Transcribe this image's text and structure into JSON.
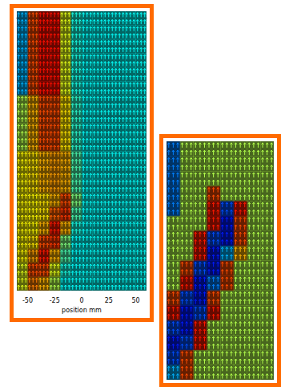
{
  "chart_data": [
    {
      "type": "vector_field",
      "marker": "arrow",
      "tick_labels": "x",
      "xlabel": "position mm",
      "xlim": [
        -60,
        60
      ],
      "xticks": [
        -50,
        -25,
        0,
        25,
        50
      ],
      "ylim": [
        -0.5,
        19.5
      ],
      "color_range": [
        0,
        1
      ],
      "x": [
        -55,
        -45,
        -35,
        -25,
        -15,
        -5,
        5,
        15,
        25,
        35,
        45,
        55
      ],
      "y": [
        0,
        1,
        2,
        3,
        4,
        5,
        6,
        7,
        8,
        9,
        10,
        11,
        12,
        13,
        14,
        15,
        16,
        17,
        18,
        19
      ],
      "cells": [
        [
          0.3,
          0.8,
          0.86,
          0.86,
          0.6,
          0.4,
          0.38,
          0.38,
          0.38,
          0.38,
          0.38,
          0.38
        ],
        [
          0.3,
          0.8,
          0.86,
          0.86,
          0.6,
          0.4,
          0.38,
          0.38,
          0.38,
          0.38,
          0.38,
          0.38
        ],
        [
          0.3,
          0.8,
          0.86,
          0.86,
          0.6,
          0.4,
          0.38,
          0.38,
          0.38,
          0.38,
          0.38,
          0.38
        ],
        [
          0.3,
          0.8,
          0.86,
          0.86,
          0.6,
          0.4,
          0.38,
          0.38,
          0.38,
          0.38,
          0.38,
          0.38
        ],
        [
          0.3,
          0.8,
          0.86,
          0.86,
          0.6,
          0.4,
          0.38,
          0.38,
          0.38,
          0.38,
          0.38,
          0.38
        ],
        [
          0.3,
          0.8,
          0.86,
          0.86,
          0.6,
          0.4,
          0.38,
          0.38,
          0.38,
          0.38,
          0.38,
          0.38
        ],
        [
          0.55,
          0.7,
          0.8,
          0.8,
          0.65,
          0.42,
          0.38,
          0.38,
          0.38,
          0.38,
          0.38,
          0.38
        ],
        [
          0.55,
          0.7,
          0.8,
          0.8,
          0.65,
          0.42,
          0.38,
          0.38,
          0.38,
          0.38,
          0.38,
          0.38
        ],
        [
          0.55,
          0.7,
          0.8,
          0.8,
          0.65,
          0.42,
          0.38,
          0.38,
          0.38,
          0.38,
          0.38,
          0.38
        ],
        [
          0.55,
          0.7,
          0.8,
          0.8,
          0.65,
          0.42,
          0.38,
          0.38,
          0.38,
          0.38,
          0.38,
          0.38
        ],
        [
          0.63,
          0.65,
          0.7,
          0.72,
          0.7,
          0.45,
          0.38,
          0.38,
          0.38,
          0.38,
          0.38,
          0.38
        ],
        [
          0.63,
          0.65,
          0.7,
          0.72,
          0.7,
          0.45,
          0.38,
          0.38,
          0.38,
          0.38,
          0.38,
          0.38
        ],
        [
          0.63,
          0.65,
          0.7,
          0.72,
          0.7,
          0.45,
          0.38,
          0.38,
          0.38,
          0.38,
          0.38,
          0.38
        ],
        [
          0.63,
          0.63,
          0.65,
          0.7,
          0.8,
          0.5,
          0.38,
          0.38,
          0.38,
          0.38,
          0.38,
          0.38
        ],
        [
          0.63,
          0.63,
          0.65,
          0.78,
          0.82,
          0.45,
          0.38,
          0.38,
          0.38,
          0.38,
          0.38,
          0.38
        ],
        [
          0.63,
          0.63,
          0.7,
          0.85,
          0.7,
          0.4,
          0.38,
          0.38,
          0.38,
          0.38,
          0.38,
          0.38
        ],
        [
          0.63,
          0.65,
          0.8,
          0.82,
          0.5,
          0.38,
          0.38,
          0.38,
          0.38,
          0.38,
          0.38,
          0.38
        ],
        [
          0.63,
          0.72,
          0.85,
          0.7,
          0.45,
          0.38,
          0.38,
          0.38,
          0.38,
          0.38,
          0.38,
          0.38
        ],
        [
          0.6,
          0.8,
          0.8,
          0.6,
          0.4,
          0.38,
          0.38,
          0.38,
          0.38,
          0.38,
          0.38,
          0.38
        ],
        [
          0.6,
          0.75,
          0.7,
          0.55,
          0.38,
          0.38,
          0.38,
          0.38,
          0.38,
          0.38,
          0.38,
          0.38
        ]
      ]
    },
    {
      "type": "vector_field",
      "marker": "arrow",
      "tick_labels": false,
      "xlim": [
        -0.5,
        7.5
      ],
      "ylim": [
        -0.5,
        15.5
      ],
      "color_range": [
        0,
        1
      ],
      "x": [
        0,
        1,
        2,
        3,
        4,
        5,
        6,
        7
      ],
      "y": [
        0,
        1,
        2,
        3,
        4,
        5,
        6,
        7,
        8,
        9,
        10,
        11,
        12,
        13,
        14,
        15
      ],
      "cells": [
        [
          0.25,
          0.55,
          0.55,
          0.55,
          0.55,
          0.55,
          0.55,
          0.55
        ],
        [
          0.25,
          0.55,
          0.55,
          0.55,
          0.55,
          0.55,
          0.55,
          0.55
        ],
        [
          0.25,
          0.55,
          0.55,
          0.55,
          0.55,
          0.55,
          0.55,
          0.55
        ],
        [
          0.25,
          0.55,
          0.55,
          0.8,
          0.55,
          0.55,
          0.55,
          0.55
        ],
        [
          0.25,
          0.55,
          0.55,
          0.85,
          0.2,
          0.85,
          0.55,
          0.55
        ],
        [
          0.55,
          0.55,
          0.55,
          0.85,
          0.15,
          0.8,
          0.55,
          0.55
        ],
        [
          0.55,
          0.55,
          0.85,
          0.2,
          0.15,
          0.8,
          0.55,
          0.55
        ],
        [
          0.55,
          0.55,
          0.85,
          0.15,
          0.3,
          0.7,
          0.55,
          0.55
        ],
        [
          0.55,
          0.8,
          0.2,
          0.15,
          0.8,
          0.55,
          0.55,
          0.55
        ],
        [
          0.55,
          0.85,
          0.15,
          0.25,
          0.8,
          0.55,
          0.55,
          0.55
        ],
        [
          0.8,
          0.2,
          0.15,
          0.8,
          0.55,
          0.55,
          0.55,
          0.55
        ],
        [
          0.85,
          0.15,
          0.2,
          0.85,
          0.55,
          0.55,
          0.55,
          0.55
        ],
        [
          0.2,
          0.15,
          0.85,
          0.55,
          0.55,
          0.55,
          0.55,
          0.55
        ],
        [
          0.15,
          0.2,
          0.85,
          0.55,
          0.55,
          0.55,
          0.55,
          0.55
        ],
        [
          0.2,
          0.8,
          0.55,
          0.55,
          0.55,
          0.55,
          0.55,
          0.55
        ],
        [
          0.3,
          0.8,
          0.55,
          0.55,
          0.55,
          0.55,
          0.55,
          0.55
        ]
      ]
    }
  ]
}
